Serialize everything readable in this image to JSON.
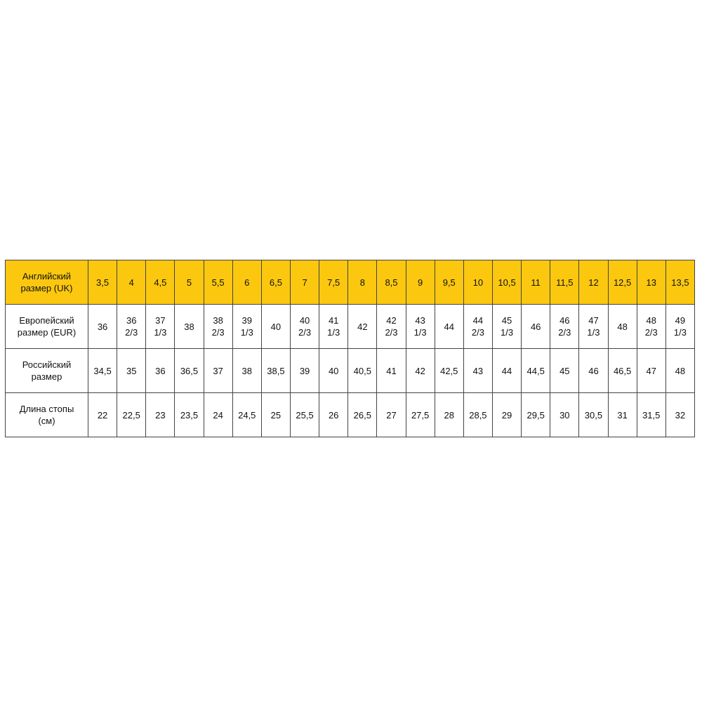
{
  "table": {
    "rows": [
      {
        "label": "Английский\nразмер (UK)",
        "cells": [
          "3,5",
          "4",
          "4,5",
          "5",
          "5,5",
          "6",
          "6,5",
          "7",
          "7,5",
          "8",
          "8,5",
          "9",
          "9,5",
          "10",
          "10,5",
          "11",
          "11,5",
          "12",
          "12,5",
          "13",
          "13,5"
        ]
      },
      {
        "label": "Европейский\nразмер (EUR)",
        "cells": [
          "36",
          "36\n2/3",
          "37\n1/3",
          "38",
          "38\n2/3",
          "39\n1/3",
          "40",
          "40\n2/3",
          "41\n1/3",
          "42",
          "42\n2/3",
          "43\n1/3",
          "44",
          "44\n2/3",
          "45\n1/3",
          "46",
          "46\n2/3",
          "47\n1/3",
          "48",
          "48\n2/3",
          "49\n1/3"
        ]
      },
      {
        "label": "Российский\nразмер",
        "cells": [
          "34,5",
          "35",
          "36",
          "36,5",
          "37",
          "38",
          "38,5",
          "39",
          "40",
          "40,5",
          "41",
          "42",
          "42,5",
          "43",
          "44",
          "44,5",
          "45",
          "46",
          "46,5",
          "47",
          "48"
        ]
      },
      {
        "label": "Длина стопы\n(см)",
        "cells": [
          "22",
          "22,5",
          "23",
          "23,5",
          "24",
          "24,5",
          "25",
          "25,5",
          "26",
          "26,5",
          "27",
          "27,5",
          "28",
          "28,5",
          "29",
          "29,5",
          "30",
          "30,5",
          "31",
          "31,5",
          "32"
        ]
      }
    ]
  }
}
